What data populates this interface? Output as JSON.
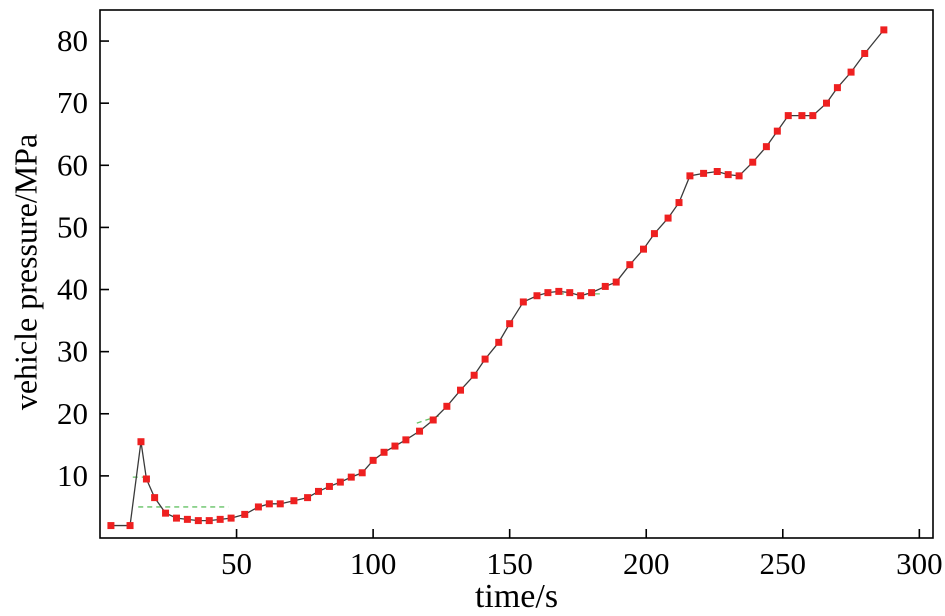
{
  "figure": {
    "xlabel": "time/s",
    "ylabel": "vehicle pressure/MPa"
  },
  "chart_data": {
    "type": "line",
    "title": "",
    "xlabel": "time/s",
    "ylabel": "vehicle pressure/MPa",
    "xlim": [
      0,
      305
    ],
    "ylim": [
      0,
      85
    ],
    "x_ticks": [
      50,
      100,
      150,
      200,
      250,
      300
    ],
    "y_ticks": [
      10,
      20,
      30,
      40,
      50,
      60,
      70,
      80
    ],
    "grid": false,
    "legend": "none",
    "marker": "red-square",
    "colors": {
      "marker": "#ee2020",
      "line": "#3a3a3a",
      "reference": "#55bb55",
      "axis": "#000000"
    },
    "points": [
      [
        4,
        2
      ],
      [
        11,
        2
      ],
      [
        15,
        15.5
      ],
      [
        17,
        9.5
      ],
      [
        20,
        6.5
      ],
      [
        24,
        4
      ],
      [
        28,
        3.2
      ],
      [
        32,
        3
      ],
      [
        36,
        2.8
      ],
      [
        40,
        2.8
      ],
      [
        44,
        3
      ],
      [
        48,
        3.2
      ],
      [
        53,
        3.8
      ],
      [
        58,
        5
      ],
      [
        62,
        5.5
      ],
      [
        66,
        5.5
      ],
      [
        71,
        6
      ],
      [
        76,
        6.5
      ],
      [
        80,
        7.5
      ],
      [
        84,
        8.3
      ],
      [
        88,
        9
      ],
      [
        92,
        9.8
      ],
      [
        96,
        10.5
      ],
      [
        100,
        12.5
      ],
      [
        104,
        13.8
      ],
      [
        108,
        14.8
      ],
      [
        112,
        15.8
      ],
      [
        117,
        17.2
      ],
      [
        122,
        19
      ],
      [
        127,
        21.2
      ],
      [
        132,
        23.8
      ],
      [
        137,
        26.2
      ],
      [
        141,
        28.8
      ],
      [
        146,
        31.5
      ],
      [
        150,
        34.5
      ],
      [
        155,
        38
      ],
      [
        160,
        39
      ],
      [
        164,
        39.5
      ],
      [
        168,
        39.7
      ],
      [
        172,
        39.5
      ],
      [
        176,
        39
      ],
      [
        180,
        39.5
      ],
      [
        185,
        40.5
      ],
      [
        189,
        41.2
      ],
      [
        194,
        44
      ],
      [
        199,
        46.5
      ],
      [
        203,
        49
      ],
      [
        208,
        51.5
      ],
      [
        212,
        54
      ],
      [
        216,
        58.3
      ],
      [
        221,
        58.7
      ],
      [
        226,
        59
      ],
      [
        230,
        58.5
      ],
      [
        234,
        58.3
      ],
      [
        239,
        60.5
      ],
      [
        244,
        63
      ],
      [
        248,
        65.5
      ],
      [
        252,
        68
      ],
      [
        257,
        68
      ],
      [
        261,
        68
      ],
      [
        266,
        70
      ],
      [
        270,
        72.5
      ],
      [
        275,
        75
      ],
      [
        280,
        78
      ],
      [
        287,
        81.8
      ]
    ],
    "reference_dashed_segments": [
      [
        [
          12,
          9.8
        ],
        [
          18,
          9.8
        ]
      ],
      [
        [
          14,
          5
        ],
        [
          47,
          5
        ]
      ],
      [
        [
          116,
          18.5
        ],
        [
          125,
          19.8
        ]
      ],
      [
        [
          168,
          39.3
        ],
        [
          184,
          39.3
        ]
      ]
    ]
  }
}
